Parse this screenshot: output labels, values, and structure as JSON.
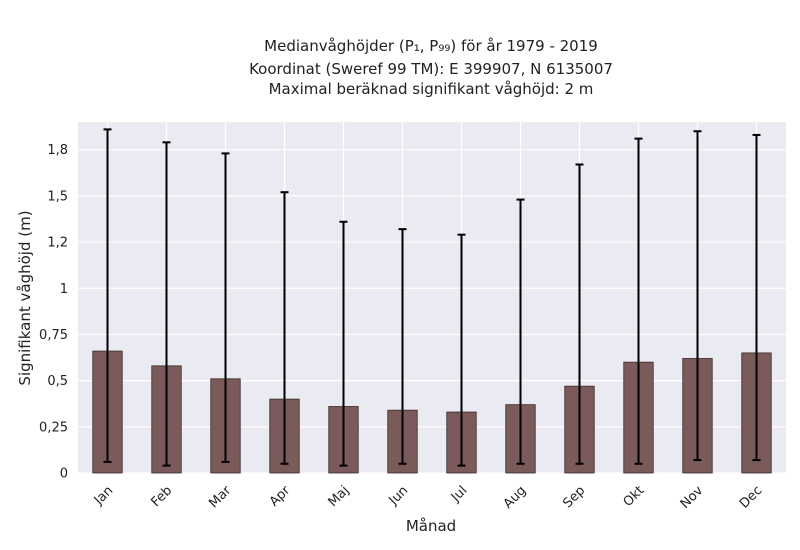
{
  "chart_data": {
    "type": "bar",
    "title_lines": [
      "Medianvåghöjder (P₁, P₉₉) för år 1979 - 2019",
      "Koordinat (Sweref 99 TM): E 399907, N 6135007",
      "Maximal beräknad signifikant våghöjd: 2 m"
    ],
    "xlabel": "Månad",
    "ylabel": "Signifikant våghöjd (m)",
    "categories": [
      "Jan",
      "Feb",
      "Mar",
      "Apr",
      "Maj",
      "Jun",
      "Jul",
      "Aug",
      "Sep",
      "Okt",
      "Nov",
      "Dec"
    ],
    "values": [
      0.66,
      0.58,
      0.51,
      0.4,
      0.36,
      0.34,
      0.33,
      0.37,
      0.47,
      0.6,
      0.62,
      0.65
    ],
    "error_low": [
      0.06,
      0.04,
      0.06,
      0.05,
      0.04,
      0.05,
      0.04,
      0.05,
      0.05,
      0.05,
      0.07,
      0.07
    ],
    "error_high": [
      1.86,
      1.79,
      1.73,
      1.52,
      1.36,
      1.32,
      1.29,
      1.48,
      1.67,
      1.81,
      1.85,
      1.83
    ],
    "ylim": [
      0,
      1.9
    ],
    "yticks": [
      0,
      0.25,
      0.5,
      0.75,
      1,
      1.25,
      1.5,
      1.75
    ],
    "ytick_labels": [
      "0",
      "0,25",
      "0,5",
      "0,75",
      "1",
      "1,2",
      "1,5",
      "1,8"
    ],
    "grid": true,
    "colors": {
      "bar": "#7b5a5a",
      "bar_edge": "#3a2a2a",
      "error": "#000000",
      "background": "#eaeaf2",
      "grid": "#ffffff"
    }
  }
}
